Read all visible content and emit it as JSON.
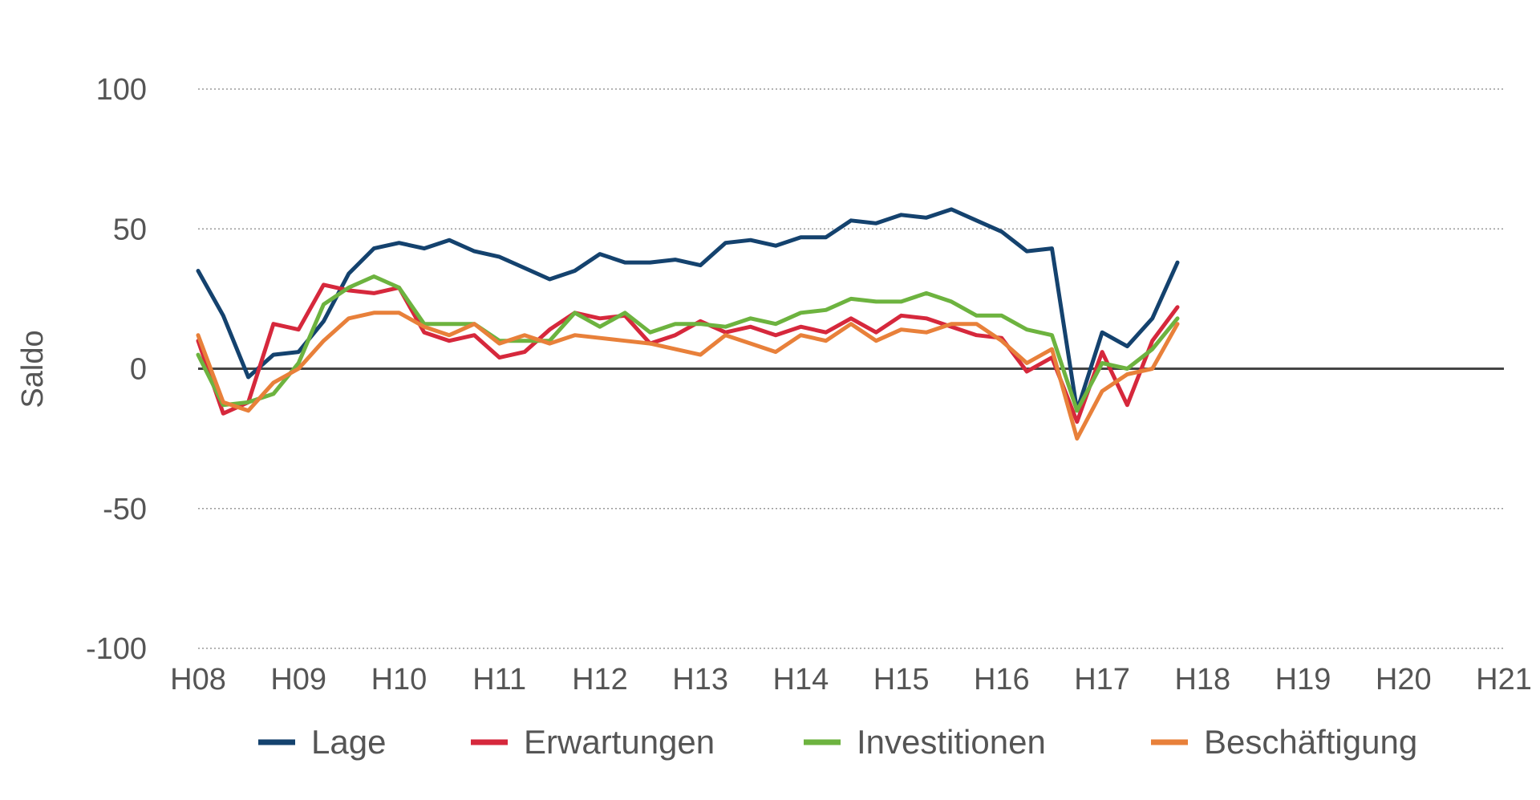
{
  "chart_data": {
    "type": "line",
    "ylabel": "Saldo",
    "ylim": [
      -100,
      100
    ],
    "yticks": [
      -100,
      -50,
      0,
      50,
      100
    ],
    "ytick_labels": [
      "-100",
      "-50",
      "0",
      "50",
      "100"
    ],
    "x_start": 2008.0,
    "x_step": 0.25,
    "xlim": [
      2008.0,
      2021.0
    ],
    "xticks": [
      2008,
      2009,
      2010,
      2011,
      2012,
      2013,
      2014,
      2015,
      2016,
      2017,
      2018,
      2019,
      2020,
      2021
    ],
    "xtick_labels": [
      "H08",
      "H09",
      "H10",
      "H11",
      "H12",
      "H13",
      "H14",
      "H15",
      "H16",
      "H17",
      "H18",
      "H19",
      "H20",
      "H21"
    ],
    "grid": "horizontal dotted",
    "legend_position": "bottom",
    "series": [
      {
        "name": "Lage",
        "color": "#14426E",
        "values": [
          35,
          19,
          -3,
          5,
          6,
          17,
          34,
          43,
          45,
          43,
          46,
          42,
          40,
          36,
          32,
          35,
          41,
          38,
          38,
          39,
          37,
          45,
          46,
          44,
          47,
          47,
          53,
          52,
          55,
          54,
          57,
          53,
          49,
          42,
          43,
          -15,
          13,
          8,
          18,
          38
        ]
      },
      {
        "name": "Erwartungen",
        "color": "#D6283C",
        "values": [
          10,
          -16,
          -12,
          16,
          14,
          30,
          28,
          27,
          29,
          13,
          10,
          12,
          4,
          6,
          14,
          20,
          18,
          19,
          9,
          12,
          17,
          13,
          15,
          12,
          15,
          13,
          18,
          13,
          19,
          18,
          15,
          12,
          11,
          -1,
          4,
          -19,
          6,
          -13,
          10,
          22
        ]
      },
      {
        "name": "Investitionen",
        "color": "#6DB33F",
        "values": [
          5,
          -13,
          -12,
          -9,
          2,
          23,
          29,
          33,
          29,
          16,
          16,
          16,
          10,
          10,
          10,
          20,
          15,
          20,
          13,
          16,
          16,
          15,
          18,
          16,
          20,
          21,
          25,
          24,
          24,
          27,
          24,
          19,
          19,
          14,
          12,
          -15,
          2,
          0,
          7,
          18
        ]
      },
      {
        "name": "Beschäftigung",
        "color": "#E8803A",
        "values": [
          12,
          -12,
          -15,
          -5,
          0,
          10,
          18,
          20,
          20,
          15,
          12,
          16,
          9,
          12,
          9,
          12,
          11,
          10,
          9,
          7,
          5,
          12,
          9,
          6,
          12,
          10,
          16,
          10,
          14,
          13,
          16,
          16,
          10,
          2,
          7,
          -25,
          -8,
          -2,
          0,
          16
        ]
      }
    ]
  }
}
